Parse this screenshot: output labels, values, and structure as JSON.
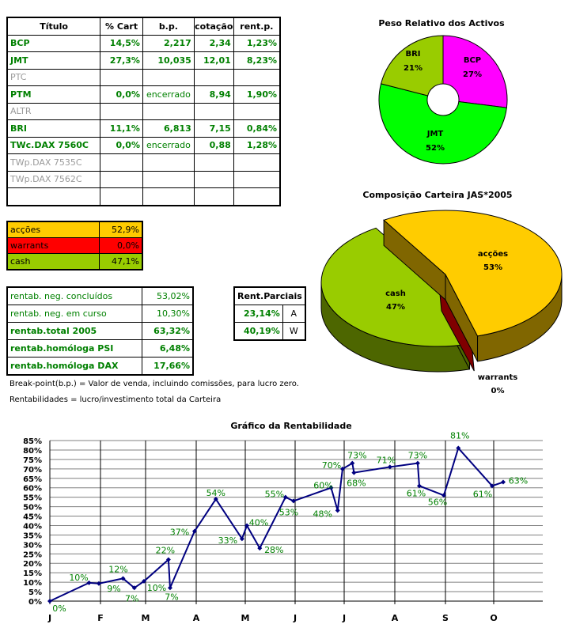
{
  "titles_table": {
    "headers": [
      "Título",
      "% Cart",
      "b.p.",
      "cotação",
      "rent.p."
    ],
    "rows": [
      {
        "titulo": "BCP",
        "cart": "14,5%",
        "bp": "2,217",
        "cotacao": "2,34",
        "rent": "1,23%",
        "active": true
      },
      {
        "titulo": "JMT",
        "cart": "27,3%",
        "bp": "10,035",
        "cotacao": "12,01",
        "rent": "8,23%",
        "active": true
      },
      {
        "titulo": "PTC",
        "cart": "",
        "bp": "",
        "cotacao": "",
        "rent": "",
        "active": false
      },
      {
        "titulo": "PTM",
        "cart": "0,0%",
        "bp": "encerrado",
        "cotacao": "8,94",
        "rent": "1,90%",
        "active": true
      },
      {
        "titulo": "ALTR",
        "cart": "",
        "bp": "",
        "cotacao": "",
        "rent": "",
        "active": false
      },
      {
        "titulo": "BRI",
        "cart": "11,1%",
        "bp": "6,813",
        "cotacao": "7,15",
        "rent": "0,84%",
        "active": true
      },
      {
        "titulo": "TWc.DAX 7560C",
        "cart": "0,0%",
        "bp": "encerrado",
        "cotacao": "0,88",
        "rent": "1,28%",
        "active": true
      },
      {
        "titulo": "TWp.DAX 7535C",
        "cart": "",
        "bp": "",
        "cotacao": "",
        "rent": "",
        "active": false
      },
      {
        "titulo": "TWp.DAX 7562C",
        "cart": "",
        "bp": "",
        "cotacao": "",
        "rent": "",
        "active": false
      },
      {
        "titulo": "",
        "cart": "",
        "bp": "",
        "cotacao": "",
        "rent": "",
        "active": false
      }
    ]
  },
  "allocation_table": [
    {
      "label": "acções",
      "value": "52,9%",
      "color": "#ffcc00"
    },
    {
      "label": "warrants",
      "value": "0,0%",
      "color": "#ff0000"
    },
    {
      "label": "cash",
      "value": "47,1%",
      "color": "#99cc00"
    }
  ],
  "returns_table": [
    {
      "label": "rentab. neg. concluídos",
      "value": "53,02%",
      "bold": false
    },
    {
      "label": "rentab. neg. em curso",
      "value": "10,30%",
      "bold": false
    },
    {
      "label": "rentab.total 2005",
      "value": "63,32%",
      "bold": true
    },
    {
      "label": "rentab.homóloga PSI",
      "value": "6,48%",
      "bold": true
    },
    {
      "label": "rentab.homóloga DAX",
      "value": "17,66%",
      "bold": true
    }
  ],
  "partial_returns": {
    "header": "Rent.Parciais",
    "rows": [
      {
        "value": "23,14%",
        "type": "A"
      },
      {
        "value": "40,19%",
        "type": "W"
      }
    ]
  },
  "notes": [
    "Break-point(b.p.) = Valor de venda, incluindo comissões, para lucro zero.",
    "Rentabilidades = lucro/investimento total da Carteira"
  ],
  "chart_data": [
    {
      "type": "pie",
      "variant": "doughnut",
      "title": "Peso Relativo dos Activos",
      "slices": [
        {
          "label": "BCP",
          "value": 27,
          "text": "27%",
          "color": "#ff00ff"
        },
        {
          "label": "JMT",
          "value": 52,
          "text": "52%",
          "color": "#00ff00"
        },
        {
          "label": "BRI",
          "value": 21,
          "text": "21%",
          "color": "#99cc00"
        }
      ]
    },
    {
      "type": "pie",
      "variant": "3d-exploded",
      "title": "Composição Carteira JAS*2005",
      "slices": [
        {
          "label": "acções",
          "value": 53,
          "text": "53%",
          "color": "#ffcc00"
        },
        {
          "label": "warrants",
          "value": 0,
          "text": "0%",
          "color": "#800000"
        },
        {
          "label": "cash",
          "value": 47,
          "text": "47%",
          "color": "#99cc00"
        }
      ]
    },
    {
      "type": "line",
      "title": "Gráfico da Rentabilidade",
      "xlabel": "",
      "ylabel": "",
      "x_tick_labels": [
        "J",
        "F",
        "M",
        "A",
        "M",
        "J",
        "J",
        "A",
        "S",
        "O"
      ],
      "x_range": [
        "2005-01-01",
        "2005-12-01"
      ],
      "ylim": [
        0,
        85
      ],
      "y_tick_labels": [
        "0%",
        "5%",
        "10%",
        "15%",
        "20%",
        "25%",
        "30%",
        "35%",
        "40%",
        "45%",
        "50%",
        "55%",
        "60%",
        "65%",
        "70%",
        "75%",
        "80%",
        "85%"
      ],
      "grid": {
        "horizontal": true,
        "vertical_months": true
      },
      "line_color": "#000080",
      "label_color": "#008000",
      "points": [
        {
          "x": "2005-01-01",
          "y": 0,
          "label": "0%"
        },
        {
          "x": "2005-01-25",
          "y": 9.7,
          "label": "10%"
        },
        {
          "x": "2005-01-31",
          "y": 9.3,
          "label": "9%"
        },
        {
          "x": "2005-02-15",
          "y": 12,
          "label": "12%"
        },
        {
          "x": "2005-02-22",
          "y": 7,
          "label": "7%"
        },
        {
          "x": "2005-02-28",
          "y": 10.5,
          "label": "10%"
        },
        {
          "x": "2005-03-15",
          "y": 22,
          "label": "22%"
        },
        {
          "x": "2005-03-16",
          "y": 7,
          "label": "7%"
        },
        {
          "x": "2005-03-31",
          "y": 37,
          "label": "37%"
        },
        {
          "x": "2005-04-13",
          "y": 54,
          "label": "54%"
        },
        {
          "x": "2005-04-29",
          "y": 33,
          "label": "33%"
        },
        {
          "x": "2005-05-02",
          "y": 40,
          "label": "40%"
        },
        {
          "x": "2005-05-10",
          "y": 28,
          "label": "28%"
        },
        {
          "x": "2005-05-26",
          "y": 55,
          "label": "55%"
        },
        {
          "x": "2005-05-31",
          "y": 53,
          "label": "53%"
        },
        {
          "x": "2005-06-23",
          "y": 60,
          "label": "60%"
        },
        {
          "x": "2005-06-27",
          "y": 48,
          "label": "48%"
        },
        {
          "x": "2005-06-30",
          "y": 70,
          "label": "70%"
        },
        {
          "x": "2005-07-06",
          "y": 73,
          "label": "73%"
        },
        {
          "x": "2005-07-07",
          "y": 68,
          "label": "68%"
        },
        {
          "x": "2005-07-29",
          "y": 71,
          "label": "71%"
        },
        {
          "x": "2005-08-15",
          "y": 73,
          "label": "73%"
        },
        {
          "x": "2005-08-16",
          "y": 61,
          "label": "61%"
        },
        {
          "x": "2005-08-31",
          "y": 56,
          "label": "56%"
        },
        {
          "x": "2005-09-09",
          "y": 81,
          "label": "81%"
        },
        {
          "x": "2005-09-30",
          "y": 61,
          "label": "61%"
        },
        {
          "x": "2005-10-07",
          "y": 63,
          "label": "63%"
        }
      ]
    }
  ]
}
